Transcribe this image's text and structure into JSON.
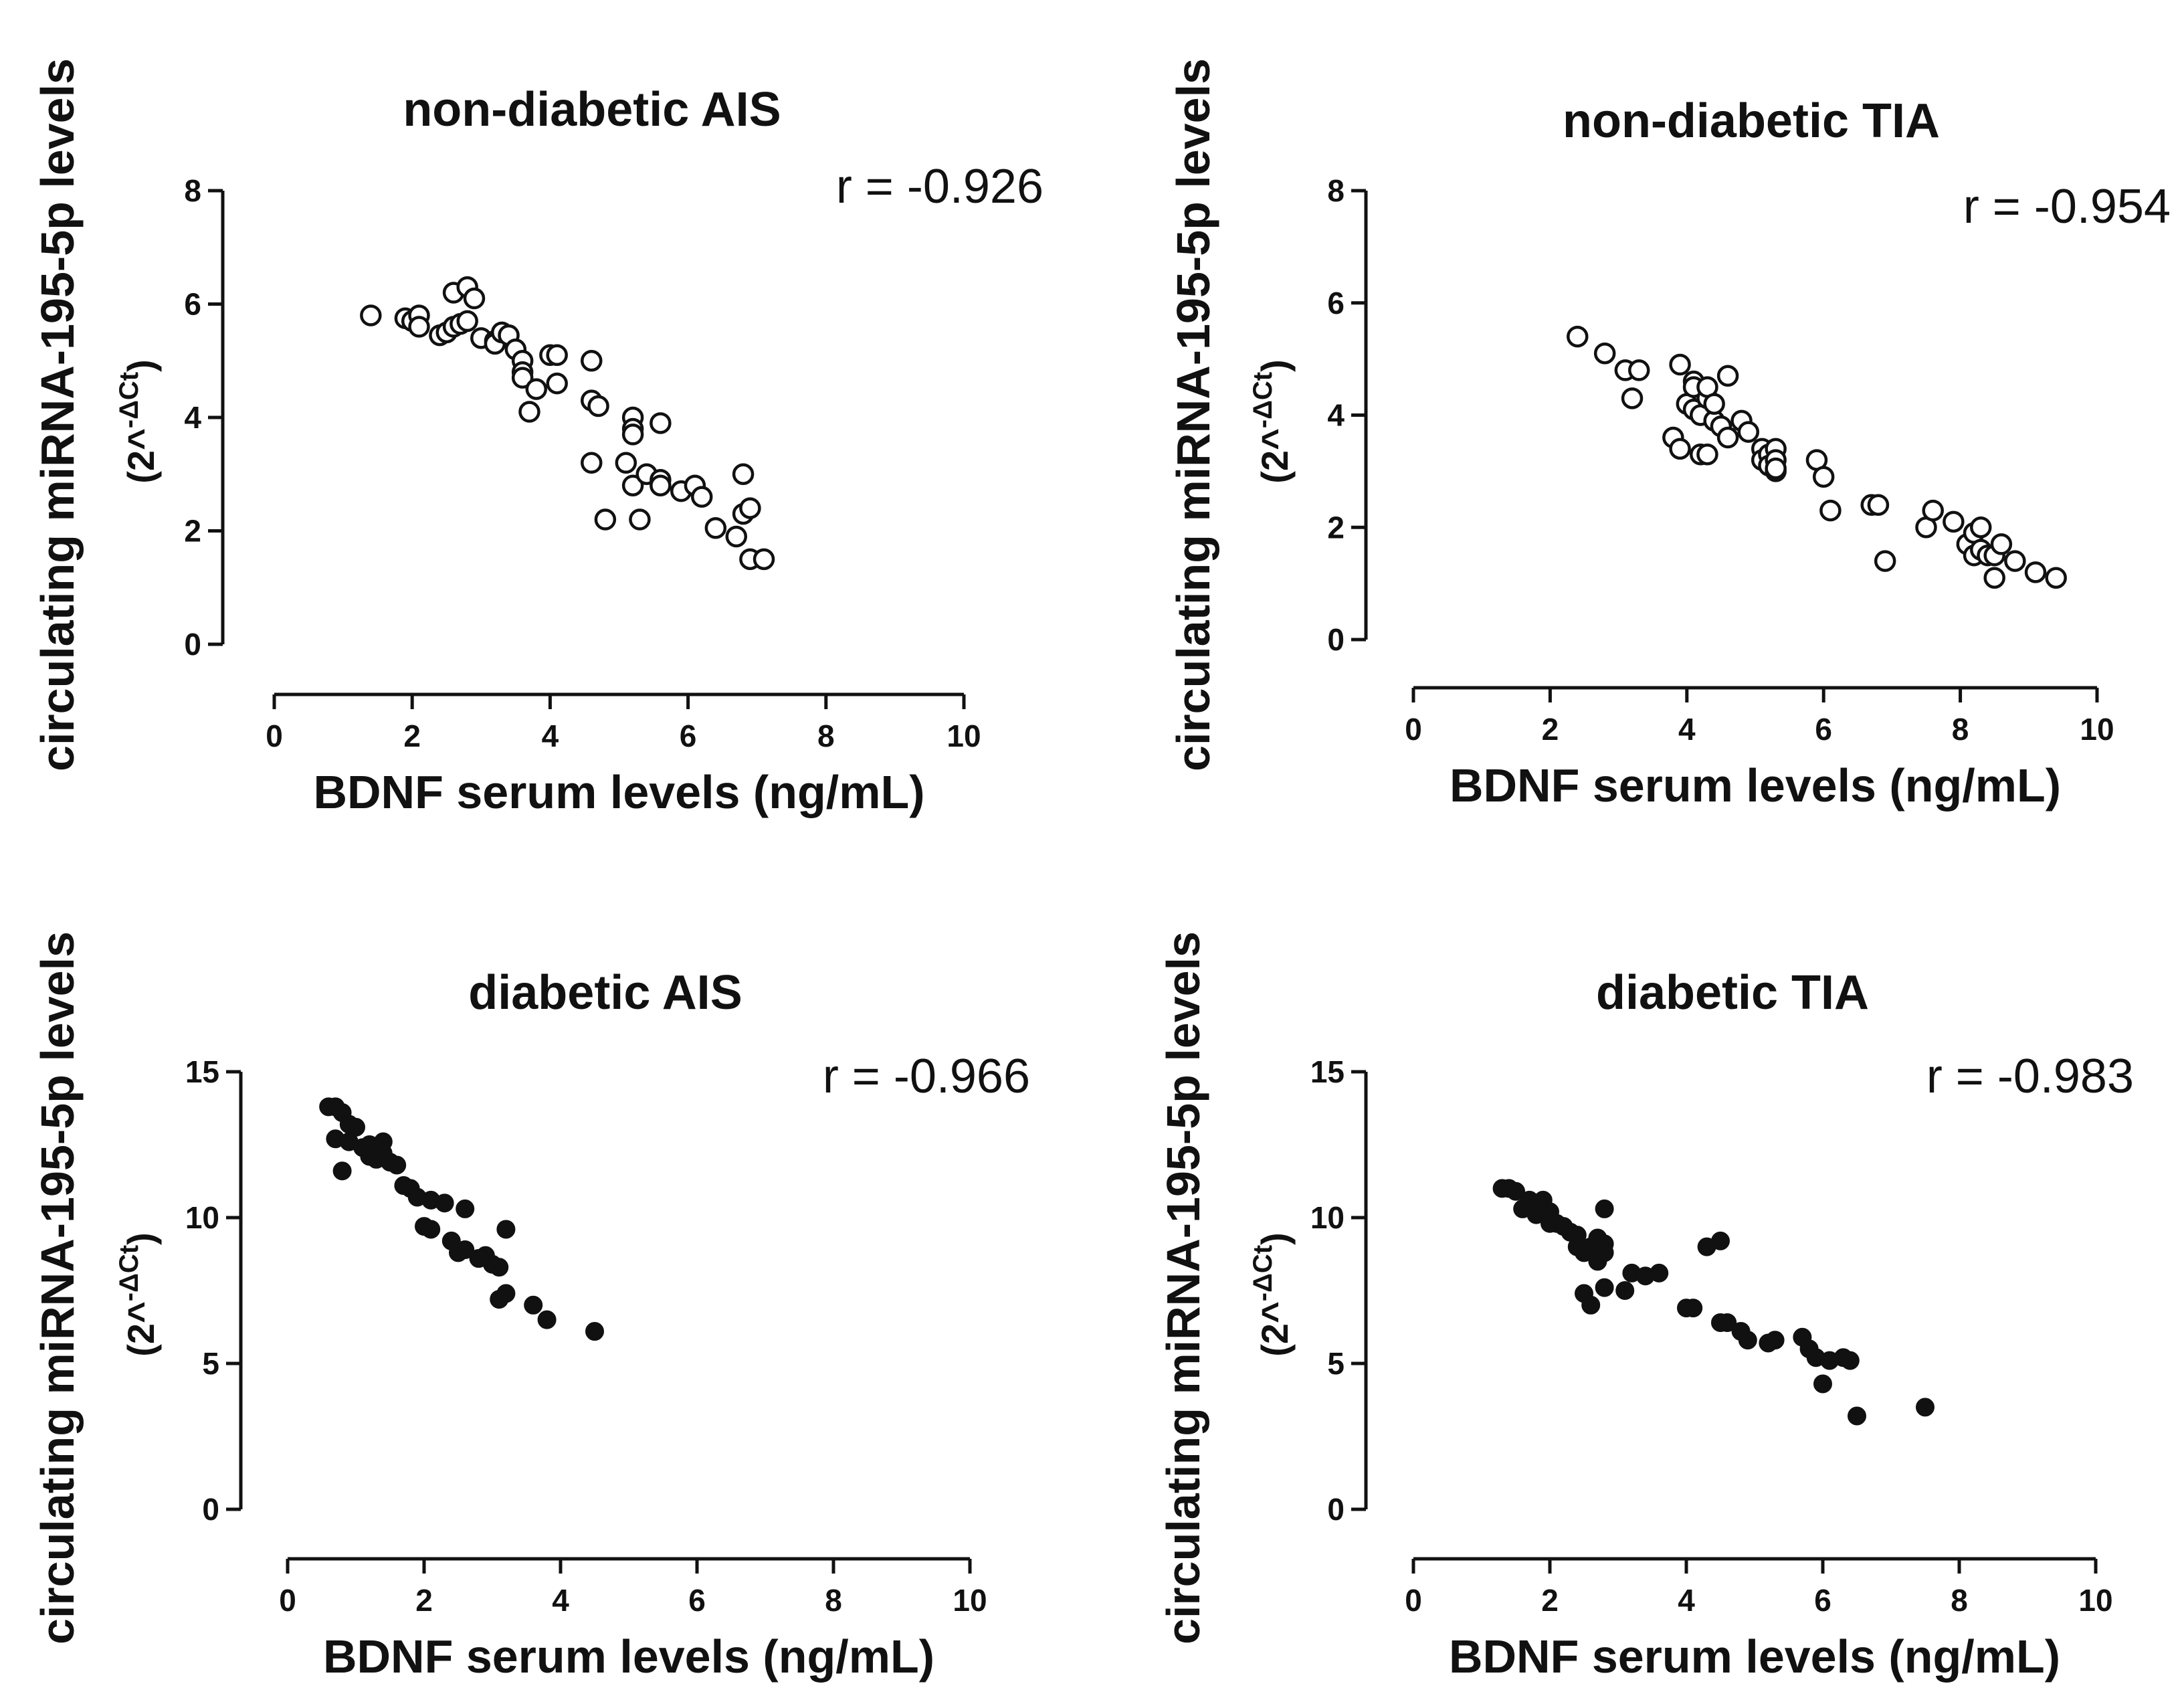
{
  "chart_data": [
    {
      "type": "scatter",
      "title": "non-diabetic AIS",
      "xlabel": "BDNF serum levels (ng/mL)",
      "ylabel": "circulating miRNA-195-5p levels",
      "yunit_base": "(2^",
      "yunit_sup": "-ΔCt",
      "yunit_close": ")",
      "annotation": "r = -0.926",
      "marker": "open",
      "xlim": [
        0,
        10
      ],
      "ylim": [
        0,
        8
      ],
      "xticks": [
        "0",
        "2",
        "4",
        "6",
        "8",
        "10"
      ],
      "yticks": [
        "0",
        "2",
        "4",
        "6",
        "8"
      ],
      "grid": false,
      "points": [
        [
          1.4,
          5.8
        ],
        [
          1.9,
          5.75
        ],
        [
          2.0,
          5.7
        ],
        [
          2.1,
          5.8
        ],
        [
          2.1,
          5.6
        ],
        [
          2.4,
          5.45
        ],
        [
          2.5,
          5.5
        ],
        [
          2.6,
          5.6
        ],
        [
          2.6,
          6.2
        ],
        [
          2.7,
          5.65
        ],
        [
          2.8,
          6.3
        ],
        [
          2.8,
          5.7
        ],
        [
          2.9,
          6.1
        ],
        [
          3.0,
          5.4
        ],
        [
          3.2,
          5.35
        ],
        [
          3.2,
          5.3
        ],
        [
          3.3,
          5.5
        ],
        [
          3.4,
          5.45
        ],
        [
          3.5,
          5.2
        ],
        [
          3.6,
          5.0
        ],
        [
          3.6,
          4.8
        ],
        [
          3.6,
          4.7
        ],
        [
          3.7,
          4.1
        ],
        [
          3.8,
          4.5
        ],
        [
          4.0,
          5.1
        ],
        [
          4.1,
          5.1
        ],
        [
          4.1,
          4.6
        ],
        [
          4.6,
          5.0
        ],
        [
          4.6,
          4.3
        ],
        [
          4.7,
          4.2
        ],
        [
          4.6,
          3.2
        ],
        [
          4.8,
          2.2
        ],
        [
          5.1,
          3.2
        ],
        [
          5.2,
          4.0
        ],
        [
          5.2,
          3.8
        ],
        [
          5.2,
          3.7
        ],
        [
          5.2,
          2.8
        ],
        [
          5.3,
          2.2
        ],
        [
          5.4,
          3.0
        ],
        [
          5.6,
          3.9
        ],
        [
          5.6,
          2.9
        ],
        [
          5.6,
          2.8
        ],
        [
          5.9,
          2.7
        ],
        [
          6.1,
          2.8
        ],
        [
          6.2,
          2.6
        ],
        [
          6.4,
          2.05
        ],
        [
          6.7,
          1.9
        ],
        [
          6.8,
          3.0
        ],
        [
          6.8,
          2.3
        ],
        [
          6.9,
          2.4
        ],
        [
          6.9,
          1.5
        ],
        [
          7.1,
          1.5
        ]
      ]
    },
    {
      "type": "scatter",
      "title": "non-diabetic TIA",
      "xlabel": "BDNF serum levels (ng/mL)",
      "ylabel": "circulating miRNA-195-5p levels",
      "yunit_base": "(2^",
      "yunit_sup": "-ΔCt",
      "yunit_close": ")",
      "annotation": "r = -0.954",
      "marker": "open",
      "xlim": [
        0,
        10
      ],
      "ylim": [
        0,
        8
      ],
      "xticks": [
        "0",
        "2",
        "4",
        "6",
        "8",
        "10"
      ],
      "yticks": [
        "0",
        "2",
        "4",
        "6",
        "8"
      ],
      "grid": false,
      "points": [
        [
          2.4,
          5.4
        ],
        [
          2.8,
          5.1
        ],
        [
          3.1,
          4.8
        ],
        [
          3.3,
          4.8
        ],
        [
          3.2,
          4.3
        ],
        [
          3.8,
          3.6
        ],
        [
          3.9,
          3.4
        ],
        [
          3.9,
          4.9
        ],
        [
          4.0,
          4.2
        ],
        [
          4.1,
          4.6
        ],
        [
          4.1,
          4.5
        ],
        [
          4.1,
          4.1
        ],
        [
          4.2,
          4.0
        ],
        [
          4.2,
          3.3
        ],
        [
          4.3,
          4.3
        ],
        [
          4.3,
          3.3
        ],
        [
          4.3,
          4.5
        ],
        [
          4.4,
          3.9
        ],
        [
          4.4,
          4.2
        ],
        [
          4.5,
          3.8
        ],
        [
          4.6,
          4.7
        ],
        [
          4.6,
          3.6
        ],
        [
          4.8,
          3.9
        ],
        [
          4.9,
          3.7
        ],
        [
          5.1,
          3.4
        ],
        [
          5.1,
          3.2
        ],
        [
          5.2,
          3.3
        ],
        [
          5.2,
          3.1
        ],
        [
          5.3,
          3.4
        ],
        [
          5.3,
          3.2
        ],
        [
          5.3,
          3.0
        ],
        [
          5.3,
          3.05
        ],
        [
          5.9,
          3.2
        ],
        [
          6.0,
          2.9
        ],
        [
          6.1,
          2.3
        ],
        [
          6.7,
          2.4
        ],
        [
          6.8,
          2.4
        ],
        [
          6.9,
          1.4
        ],
        [
          7.5,
          2.0
        ],
        [
          7.6,
          2.3
        ],
        [
          7.9,
          2.1
        ],
        [
          8.1,
          1.7
        ],
        [
          8.2,
          1.9
        ],
        [
          8.2,
          1.5
        ],
        [
          8.3,
          2.0
        ],
        [
          8.3,
          1.6
        ],
        [
          8.4,
          1.5
        ],
        [
          8.5,
          1.1
        ],
        [
          8.5,
          1.5
        ],
        [
          8.6,
          1.7
        ],
        [
          8.8,
          1.4
        ],
        [
          9.1,
          1.2
        ],
        [
          9.4,
          1.1
        ]
      ]
    },
    {
      "type": "scatter",
      "title": "diabetic AIS",
      "xlabel": "BDNF serum levels (ng/mL)",
      "ylabel": "circulating miRNA-195-5p levels",
      "yunit_base": "(2^",
      "yunit_sup": "-ΔCt",
      "yunit_close": ")",
      "annotation": "r = -0.966",
      "marker": "filled",
      "xlim": [
        0,
        10
      ],
      "ylim": [
        0,
        15
      ],
      "xticks": [
        "0",
        "2",
        "4",
        "6",
        "8",
        "10"
      ],
      "yticks": [
        "0",
        "5",
        "10",
        "15"
      ],
      "grid": false,
      "points": [
        [
          0.6,
          13.8
        ],
        [
          0.7,
          13.8
        ],
        [
          0.7,
          12.7
        ],
        [
          0.8,
          13.6
        ],
        [
          0.8,
          11.6
        ],
        [
          0.9,
          13.2
        ],
        [
          0.9,
          12.6
        ],
        [
          1.0,
          13.1
        ],
        [
          1.1,
          12.4
        ],
        [
          1.2,
          12.1
        ],
        [
          1.2,
          12.5
        ],
        [
          1.3,
          12.0
        ],
        [
          1.4,
          12.2
        ],
        [
          1.4,
          12.6
        ],
        [
          1.5,
          11.9
        ],
        [
          1.6,
          11.8
        ],
        [
          1.7,
          11.1
        ],
        [
          1.8,
          11.0
        ],
        [
          1.9,
          10.7
        ],
        [
          2.0,
          9.7
        ],
        [
          2.1,
          10.6
        ],
        [
          2.1,
          9.6
        ],
        [
          2.3,
          10.5
        ],
        [
          2.4,
          9.2
        ],
        [
          2.5,
          8.8
        ],
        [
          2.6,
          10.3
        ],
        [
          2.6,
          8.9
        ],
        [
          2.8,
          8.6
        ],
        [
          2.9,
          8.7
        ],
        [
          3.0,
          8.4
        ],
        [
          3.1,
          8.3
        ],
        [
          3.1,
          7.2
        ],
        [
          3.2,
          9.6
        ],
        [
          3.2,
          7.4
        ],
        [
          3.6,
          7.0
        ],
        [
          3.8,
          6.5
        ],
        [
          4.5,
          6.1
        ]
      ]
    },
    {
      "type": "scatter",
      "title": "diabetic TIA",
      "xlabel": "BDNF serum levels (ng/mL)",
      "ylabel": "circulating miRNA-195-5p levels",
      "yunit_base": "(2^",
      "yunit_sup": "-ΔCt",
      "yunit_close": ")",
      "annotation": "r = -0.983",
      "marker": "filled",
      "xlim": [
        0,
        10
      ],
      "ylim": [
        0,
        15
      ],
      "xticks": [
        "0",
        "2",
        "4",
        "6",
        "8",
        "10"
      ],
      "yticks": [
        "0",
        "5",
        "10",
        "15"
      ],
      "grid": false,
      "points": [
        [
          1.3,
          11.0
        ],
        [
          1.4,
          11.0
        ],
        [
          1.5,
          10.9
        ],
        [
          1.6,
          10.3
        ],
        [
          1.7,
          10.6
        ],
        [
          1.8,
          10.4
        ],
        [
          1.8,
          10.1
        ],
        [
          1.9,
          10.6
        ],
        [
          2.0,
          10.2
        ],
        [
          2.0,
          9.8
        ],
        [
          2.1,
          9.8
        ],
        [
          2.2,
          9.7
        ],
        [
          2.3,
          9.5
        ],
        [
          2.4,
          9.0
        ],
        [
          2.4,
          9.4
        ],
        [
          2.5,
          8.8
        ],
        [
          2.5,
          7.4
        ],
        [
          2.6,
          9.0
        ],
        [
          2.6,
          7.0
        ],
        [
          2.7,
          9.3
        ],
        [
          2.7,
          8.5
        ],
        [
          2.8,
          10.3
        ],
        [
          2.8,
          9.1
        ],
        [
          2.8,
          8.8
        ],
        [
          2.8,
          7.6
        ],
        [
          3.1,
          7.5
        ],
        [
          3.2,
          8.1
        ],
        [
          3.4,
          8.0
        ],
        [
          3.6,
          8.1
        ],
        [
          4.0,
          6.9
        ],
        [
          4.1,
          6.9
        ],
        [
          4.3,
          9.0
        ],
        [
          4.5,
          9.2
        ],
        [
          4.5,
          6.4
        ],
        [
          4.6,
          6.4
        ],
        [
          4.8,
          6.1
        ],
        [
          4.9,
          5.8
        ],
        [
          5.2,
          5.7
        ],
        [
          5.3,
          5.8
        ],
        [
          5.7,
          5.9
        ],
        [
          5.8,
          5.5
        ],
        [
          5.9,
          5.2
        ],
        [
          6.0,
          4.3
        ],
        [
          6.1,
          5.1
        ],
        [
          6.3,
          5.2
        ],
        [
          6.4,
          5.1
        ],
        [
          6.5,
          3.2
        ],
        [
          7.5,
          3.5
        ]
      ]
    }
  ]
}
